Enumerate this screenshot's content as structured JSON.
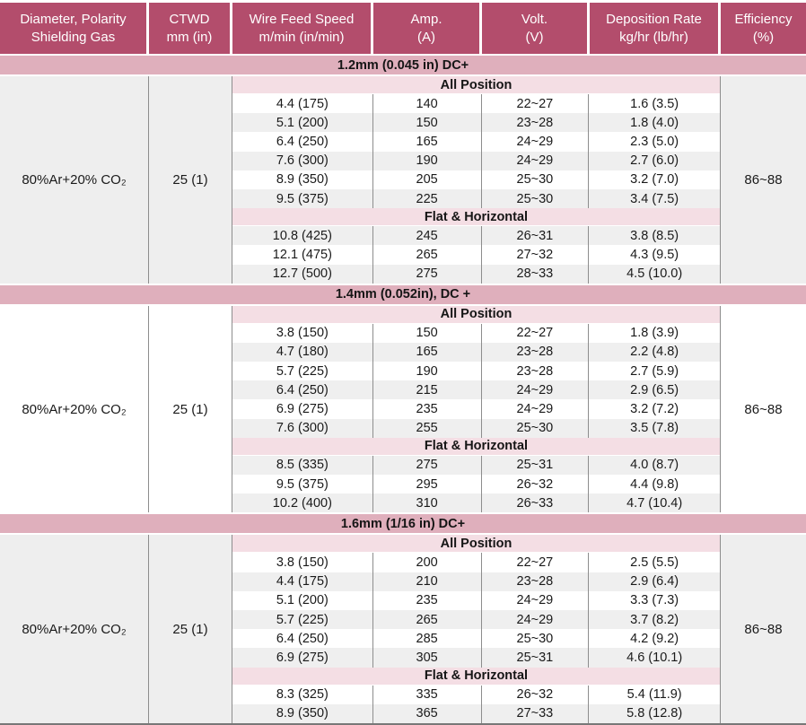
{
  "table": {
    "colors": {
      "header_bg": "#b34d6c",
      "section_band": "#dfafbc",
      "group_band": "#f4dee4",
      "row_shade": "#efefef",
      "merged_shade": "#eeeeee",
      "header_text": "#ffffff",
      "body_text": "#1a1a1a"
    },
    "columns": [
      {
        "line1": "Diameter, Polarity",
        "line2": "Shielding Gas"
      },
      {
        "line1": "CTWD",
        "line2": "mm (in)"
      },
      {
        "line1": "Wire Feed Speed",
        "line2": "m/min (in/min)"
      },
      {
        "line1": "Amp.",
        "line2": "(A)"
      },
      {
        "line1": "Volt.",
        "line2": "(V)"
      },
      {
        "line1": "Deposition Rate",
        "line2": "kg/hr (lb/hr)"
      },
      {
        "line1": "Efficiency",
        "line2": "(%)"
      }
    ],
    "sections": [
      {
        "title": "1.2mm (0.045 in) DC+",
        "gas": "80%Ar+20% CO₂",
        "ctwd": "25 (1)",
        "efficiency": "86~88",
        "merged_shaded": true,
        "groups": [
          {
            "label": "All Position",
            "rows": [
              {
                "wfs": "4.4 (175)",
                "amp": "140",
                "volt": "22~27",
                "dep": "1.6 (3.5)",
                "shaded": false
              },
              {
                "wfs": "5.1 (200)",
                "amp": "150",
                "volt": "23~28",
                "dep": "1.8 (4.0)",
                "shaded": true
              },
              {
                "wfs": "6.4 (250)",
                "amp": "165",
                "volt": "24~29",
                "dep": "2.3 (5.0)",
                "shaded": false
              },
              {
                "wfs": "7.6 (300)",
                "amp": "190",
                "volt": "24~29",
                "dep": "2.7 (6.0)",
                "shaded": true
              },
              {
                "wfs": "8.9 (350)",
                "amp": "205",
                "volt": "25~30",
                "dep": "3.2 (7.0)",
                "shaded": false
              },
              {
                "wfs": "9.5 (375)",
                "amp": "225",
                "volt": "25~30",
                "dep": "3.4 (7.5)",
                "shaded": true
              }
            ]
          },
          {
            "label": "Flat & Horizontal",
            "rows": [
              {
                "wfs": "10.8 (425)",
                "amp": "245",
                "volt": "26~31",
                "dep": "3.8 (8.5)",
                "shaded": true
              },
              {
                "wfs": "12.1 (475)",
                "amp": "265",
                "volt": "27~32",
                "dep": "4.3 (9.5)",
                "shaded": false
              },
              {
                "wfs": "12.7 (500)",
                "amp": "275",
                "volt": "28~33",
                "dep": "4.5 (10.0)",
                "shaded": true
              }
            ]
          }
        ]
      },
      {
        "title": "1.4mm (0.052in), DC +",
        "gas": "80%Ar+20% CO₂",
        "ctwd": "25 (1)",
        "efficiency": "86~88",
        "merged_shaded": false,
        "groups": [
          {
            "label": "All Position",
            "rows": [
              {
                "wfs": "3.8 (150)",
                "amp": "150",
                "volt": "22~27",
                "dep": "1.8 (3.9)",
                "shaded": false
              },
              {
                "wfs": "4.7 (180)",
                "amp": "165",
                "volt": "23~28",
                "dep": "2.2 (4.8)",
                "shaded": true
              },
              {
                "wfs": "5.7 (225)",
                "amp": "190",
                "volt": "23~28",
                "dep": "2.7 (5.9)",
                "shaded": false
              },
              {
                "wfs": "6.4 (250)",
                "amp": "215",
                "volt": "24~29",
                "dep": "2.9 (6.5)",
                "shaded": true
              },
              {
                "wfs": "6.9 (275)",
                "amp": "235",
                "volt": "24~29",
                "dep": "3.2 (7.2)",
                "shaded": false
              },
              {
                "wfs": "7.6 (300)",
                "amp": "255",
                "volt": "25~30",
                "dep": "3.5 (7.8)",
                "shaded": true
              }
            ]
          },
          {
            "label": "Flat & Horizontal",
            "rows": [
              {
                "wfs": "8.5 (335)",
                "amp": "275",
                "volt": "25~31",
                "dep": "4.0 (8.7)",
                "shaded": true
              },
              {
                "wfs": "9.5 (375)",
                "amp": "295",
                "volt": "26~32",
                "dep": "4.4 (9.8)",
                "shaded": false
              },
              {
                "wfs": "10.2 (400)",
                "amp": "310",
                "volt": "26~33",
                "dep": "4.7 (10.4)",
                "shaded": true
              }
            ]
          }
        ]
      },
      {
        "title": "1.6mm (1/16 in) DC+",
        "gas": "80%Ar+20% CO₂",
        "ctwd": "25 (1)",
        "efficiency": "86~88",
        "merged_shaded": true,
        "groups": [
          {
            "label": "All Position",
            "rows": [
              {
                "wfs": "3.8 (150)",
                "amp": "200",
                "volt": "22~27",
                "dep": "2.5 (5.5)",
                "shaded": false
              },
              {
                "wfs": "4.4 (175)",
                "amp": "210",
                "volt": "23~28",
                "dep": "2.9 (6.4)",
                "shaded": true
              },
              {
                "wfs": "5.1 (200)",
                "amp": "235",
                "volt": "24~29",
                "dep": "3.3 (7.3)",
                "shaded": false
              },
              {
                "wfs": "5.7 (225)",
                "amp": "265",
                "volt": "24~29",
                "dep": "3.7 (8.2)",
                "shaded": true
              },
              {
                "wfs": "6.4 (250)",
                "amp": "285",
                "volt": "25~30",
                "dep": "4.2 (9.2)",
                "shaded": false
              },
              {
                "wfs": "6.9 (275)",
                "amp": "305",
                "volt": "25~31",
                "dep": "4.6 (10.1)",
                "shaded": true
              }
            ]
          },
          {
            "label": "Flat & Horizontal",
            "rows": [
              {
                "wfs": "8.3 (325)",
                "amp": "335",
                "volt": "26~32",
                "dep": "5.4 (11.9)",
                "shaded": false
              },
              {
                "wfs": "8.9 (350)",
                "amp": "365",
                "volt": "27~33",
                "dep": "5.8 (12.8)",
                "shaded": true
              }
            ]
          }
        ]
      }
    ]
  }
}
